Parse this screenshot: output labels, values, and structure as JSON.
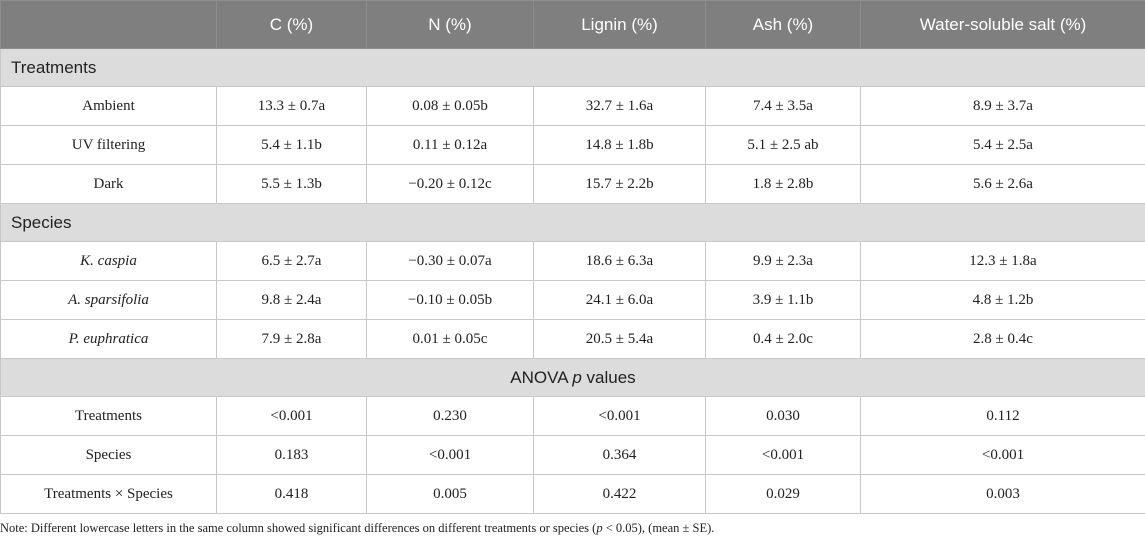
{
  "columns": [
    "",
    "C (%)",
    "N (%)",
    "Lignin (%)",
    "Ash (%)",
    "Water-soluble salt (%)"
  ],
  "sections": [
    {
      "title": "Treatments",
      "rows": [
        {
          "label": "Ambient",
          "italic": false,
          "values": [
            "13.3 ± 0.7a",
            "0.08 ± 0.05b",
            "32.7 ± 1.6a",
            "7.4 ± 3.5a",
            "8.9 ± 3.7a"
          ]
        },
        {
          "label": "UV filtering",
          "italic": false,
          "values": [
            "5.4 ± 1.1b",
            "0.11 ± 0.12a",
            "14.8 ± 1.8b",
            "5.1 ± 2.5 ab",
            "5.4 ± 2.5a"
          ]
        },
        {
          "label": "Dark",
          "italic": false,
          "values": [
            "5.5 ± 1.3b",
            "−0.20 ± 0.12c",
            "15.7 ± 2.2b",
            "1.8 ± 2.8b",
            "5.6 ± 2.6a"
          ]
        }
      ]
    },
    {
      "title": "Species",
      "rows": [
        {
          "label": "K. caspia",
          "italic": true,
          "values": [
            "6.5 ± 2.7a",
            "−0.30 ± 0.07a",
            "18.6 ± 6.3a",
            "9.9 ± 2.3a",
            "12.3 ± 1.8a"
          ]
        },
        {
          "label": "A. sparsifolia",
          "italic": true,
          "values": [
            "9.8 ± 2.4a",
            "−0.10 ± 0.05b",
            "24.1 ± 6.0a",
            "3.9 ± 1.1b",
            "4.8 ± 1.2b"
          ]
        },
        {
          "label": "P. euphratica",
          "italic": true,
          "values": [
            "7.9 ± 2.8a",
            "0.01 ± 0.05c",
            "20.5 ± 5.4a",
            "0.4 ± 2.0c",
            "2.8 ± 0.4c"
          ]
        }
      ]
    }
  ],
  "anova": {
    "title_pre": "ANOVA ",
    "title_italic": "p",
    "title_post": " values",
    "rows": [
      {
        "label": "Treatments",
        "values": [
          "<0.001",
          "0.230",
          "<0.001",
          "0.030",
          "0.112"
        ]
      },
      {
        "label": "Species",
        "values": [
          "0.183",
          "<0.001",
          "0.364",
          "<0.001",
          "<0.001"
        ]
      },
      {
        "label": "Treatments × Species",
        "values": [
          "0.418",
          "0.005",
          "0.422",
          "0.029",
          "0.003"
        ]
      }
    ]
  },
  "note": {
    "pre": "Note: Different lowercase letters in the same column showed significant differences on different treatments or species (",
    "italic": "p",
    "post": " < 0.05), (mean ± SE)."
  }
}
